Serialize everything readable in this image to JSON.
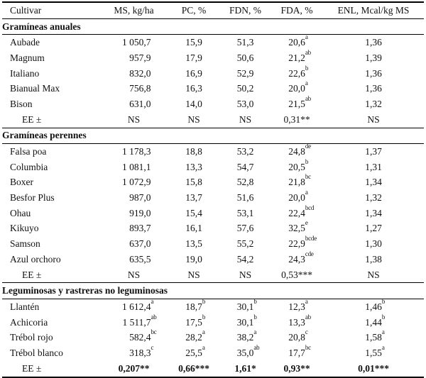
{
  "table": {
    "columns": {
      "cultivar": "Cultivar",
      "ms": "MS, kg/ha",
      "pc": "PC, %",
      "fdn": "FDN, %",
      "fda": "FDA, %",
      "enl": "ENL, Mcal/kg MS"
    },
    "sections": [
      {
        "title": "Gramíneas anuales",
        "rows": [
          {
            "name": "Aubade",
            "cells": [
              {
                "v": "1 050,7",
                "s": ""
              },
              {
                "v": "15,9",
                "s": ""
              },
              {
                "v": "51,3",
                "s": ""
              },
              {
                "v": "20,6",
                "s": "a"
              },
              {
                "v": "1,36",
                "s": ""
              }
            ]
          },
          {
            "name": "Magnum",
            "cells": [
              {
                "v": "957,9",
                "s": ""
              },
              {
                "v": "17,9",
                "s": ""
              },
              {
                "v": "50,6",
                "s": ""
              },
              {
                "v": "21,2",
                "s": "ab"
              },
              {
                "v": "1,39",
                "s": ""
              }
            ]
          },
          {
            "name": "Italiano",
            "cells": [
              {
                "v": "832,0",
                "s": ""
              },
              {
                "v": "16,9",
                "s": ""
              },
              {
                "v": "52,9",
                "s": ""
              },
              {
                "v": "22,6",
                "s": "b"
              },
              {
                "v": "1,36",
                "s": ""
              }
            ]
          },
          {
            "name": "Bianual Max",
            "cells": [
              {
                "v": "756,8",
                "s": ""
              },
              {
                "v": "16,3",
                "s": ""
              },
              {
                "v": "50,2",
                "s": ""
              },
              {
                "v": "20,0",
                "s": "a"
              },
              {
                "v": "1,36",
                "s": ""
              }
            ]
          },
          {
            "name": "Bison",
            "cells": [
              {
                "v": "631,0",
                "s": ""
              },
              {
                "v": "14,0",
                "s": ""
              },
              {
                "v": "53,0",
                "s": ""
              },
              {
                "v": "21,5",
                "s": "ab"
              },
              {
                "v": "1,32",
                "s": ""
              }
            ]
          },
          {
            "name": "EE ±",
            "cells": [
              {
                "v": "NS",
                "s": ""
              },
              {
                "v": "NS",
                "s": ""
              },
              {
                "v": "NS",
                "s": ""
              },
              {
                "v": "0,31**",
                "s": ""
              },
              {
                "v": "NS",
                "s": ""
              }
            ]
          }
        ]
      },
      {
        "title": "Gramíneas perennes",
        "rows": [
          {
            "name": "Falsa poa",
            "cells": [
              {
                "v": "1 178,3",
                "s": ""
              },
              {
                "v": "18,8",
                "s": ""
              },
              {
                "v": "53,2",
                "s": ""
              },
              {
                "v": "24,8",
                "s": "de"
              },
              {
                "v": "1,37",
                "s": ""
              }
            ]
          },
          {
            "name": "Columbia",
            "cells": [
              {
                "v": "1 081,1",
                "s": ""
              },
              {
                "v": "13,3",
                "s": ""
              },
              {
                "v": "54,7",
                "s": ""
              },
              {
                "v": "20,5",
                "s": "b"
              },
              {
                "v": "1,31",
                "s": ""
              }
            ]
          },
          {
            "name": "Boxer",
            "cells": [
              {
                "v": "1 072,9",
                "s": ""
              },
              {
                "v": "15,8",
                "s": ""
              },
              {
                "v": "52,8",
                "s": ""
              },
              {
                "v": "21,8",
                "s": "bc"
              },
              {
                "v": "1,34",
                "s": ""
              }
            ]
          },
          {
            "name": "Besfor Plus",
            "cells": [
              {
                "v": "987,0",
                "s": ""
              },
              {
                "v": "13,7",
                "s": ""
              },
              {
                "v": "51,6",
                "s": ""
              },
              {
                "v": "20,0",
                "s": "a"
              },
              {
                "v": "1,32",
                "s": ""
              }
            ]
          },
          {
            "name": "Ohau",
            "cells": [
              {
                "v": "919,0",
                "s": ""
              },
              {
                "v": "15,4",
                "s": ""
              },
              {
                "v": "53,1",
                "s": ""
              },
              {
                "v": "22,4",
                "s": "bcd"
              },
              {
                "v": "1,34",
                "s": ""
              }
            ]
          },
          {
            "name": "Kikuyo",
            "cells": [
              {
                "v": "893,7",
                "s": ""
              },
              {
                "v": "16,1",
                "s": ""
              },
              {
                "v": "57,6",
                "s": ""
              },
              {
                "v": "32,5",
                "s": "e"
              },
              {
                "v": "1,27",
                "s": ""
              }
            ]
          },
          {
            "name": "Samson",
            "cells": [
              {
                "v": "637,0",
                "s": ""
              },
              {
                "v": "13,5",
                "s": ""
              },
              {
                "v": "55,2",
                "s": ""
              },
              {
                "v": "22,9",
                "s": "bcde"
              },
              {
                "v": "1,30",
                "s": ""
              }
            ]
          },
          {
            "name": "Azul orchoro",
            "cells": [
              {
                "v": "635,5",
                "s": ""
              },
              {
                "v": "19,0",
                "s": ""
              },
              {
                "v": "54,2",
                "s": ""
              },
              {
                "v": "24,3",
                "s": "cde"
              },
              {
                "v": "1,38",
                "s": ""
              }
            ]
          },
          {
            "name": "EE ±",
            "cells": [
              {
                "v": "NS",
                "s": ""
              },
              {
                "v": "NS",
                "s": ""
              },
              {
                "v": "NS",
                "s": ""
              },
              {
                "v": "0,53***",
                "s": ""
              },
              {
                "v": "NS",
                "s": ""
              }
            ]
          }
        ]
      },
      {
        "title": "Leguminosas y rastreras no leguminosas",
        "rows": [
          {
            "name": "Llantén",
            "cells": [
              {
                "v": "1 612,4",
                "s": "a"
              },
              {
                "v": "18,7",
                "s": "b"
              },
              {
                "v": "30,1",
                "s": "b"
              },
              {
                "v": "12,3",
                "s": "a"
              },
              {
                "v": "1,46",
                "s": "b"
              }
            ]
          },
          {
            "name": "Achicoria",
            "cells": [
              {
                "v": "1 511,7",
                "s": "ab"
              },
              {
                "v": "17,5",
                "s": "b"
              },
              {
                "v": "30,1",
                "s": "b"
              },
              {
                "v": "13,3",
                "s": "ab"
              },
              {
                "v": "1,44",
                "s": "b"
              }
            ]
          },
          {
            "name": "Trébol rojo",
            "cells": [
              {
                "v": "582,4",
                "s": "bc"
              },
              {
                "v": "28,2",
                "s": "a"
              },
              {
                "v": "38,2",
                "s": "a"
              },
              {
                "v": "20,8",
                "s": "c"
              },
              {
                "v": "1,58",
                "s": "a"
              }
            ]
          },
          {
            "name": "Trébol blanco",
            "cells": [
              {
                "v": "318,3",
                "s": "c"
              },
              {
                "v": "25,5",
                "s": "a"
              },
              {
                "v": "35,0",
                "s": "ab"
              },
              {
                "v": "17,7",
                "s": "bc"
              },
              {
                "v": "1,55",
                "s": "a"
              }
            ]
          },
          {
            "name": "EE ±",
            "cells": [
              {
                "v": "0,207**",
                "s": ""
              },
              {
                "v": "0,66***",
                "s": ""
              },
              {
                "v": "1,61*",
                "s": ""
              },
              {
                "v": "0,93**",
                "s": ""
              },
              {
                "v": "0,01***",
                "s": ""
              }
            ]
          }
        ]
      }
    ]
  }
}
